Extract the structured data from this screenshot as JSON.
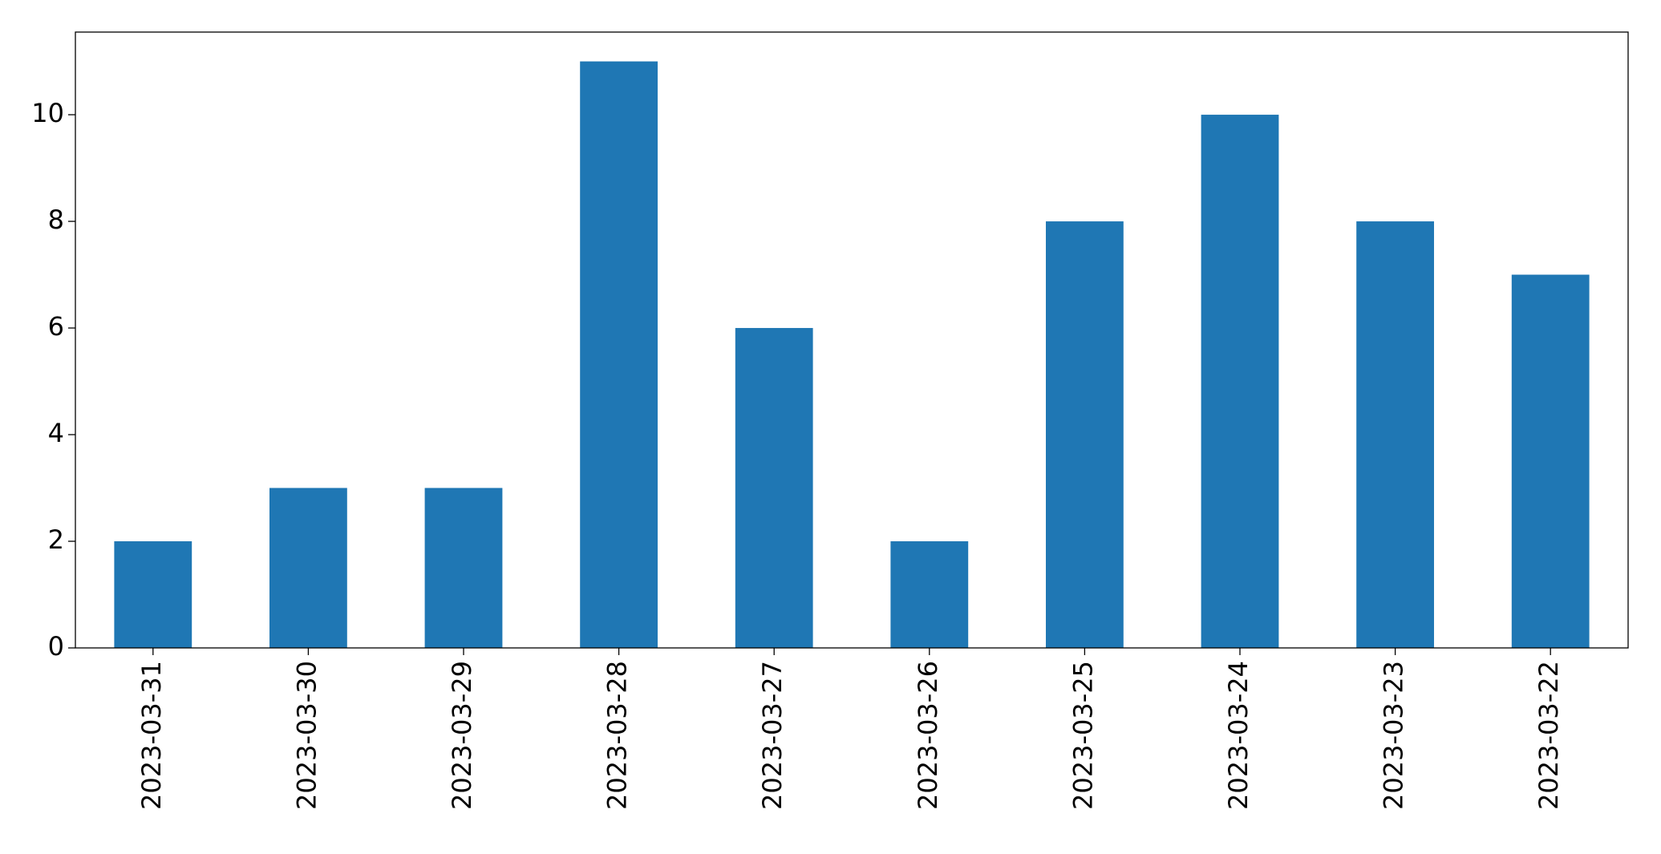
{
  "chart_data": {
    "type": "bar",
    "categories": [
      "2023-03-31",
      "2023-03-30",
      "2023-03-29",
      "2023-03-28",
      "2023-03-27",
      "2023-03-26",
      "2023-03-25",
      "2023-03-24",
      "2023-03-23",
      "2023-03-22"
    ],
    "values": [
      2,
      3,
      3,
      11,
      6,
      2,
      8,
      10,
      8,
      7
    ],
    "color": "#1f77b4",
    "ylim": [
      0,
      11.55
    ],
    "yticks": [
      0,
      2,
      4,
      6,
      8,
      10
    ],
    "grid": false
  }
}
